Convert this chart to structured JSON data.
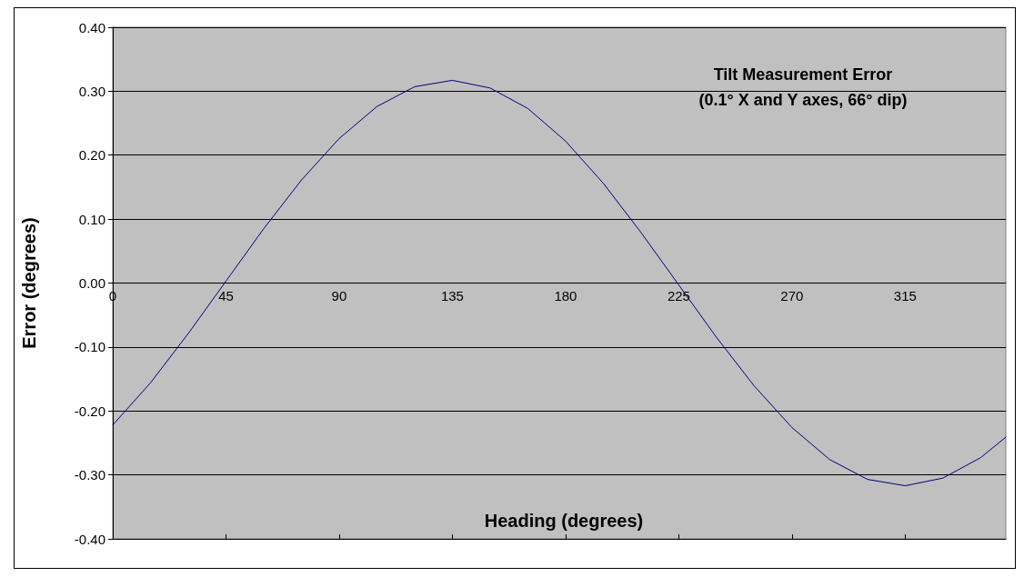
{
  "chart_data": {
    "type": "line",
    "title": "Tilt Measurement Error",
    "subtitle": "(0.1° X and Y axes, 66° dip)",
    "xlabel": "Heading (degrees)",
    "ylabel": "Error (degrees)",
    "x": [
      0,
      15,
      30,
      45,
      60,
      75,
      90,
      105,
      120,
      135,
      150,
      165,
      180,
      195,
      210,
      225,
      240,
      255,
      270,
      285,
      300,
      315,
      330,
      345,
      355
    ],
    "series": [
      {
        "color": "#000080",
        "values": [
          -0.222,
          -0.156,
          -0.079,
          0.003,
          0.085,
          0.161,
          0.226,
          0.276,
          0.307,
          0.317,
          0.305,
          0.273,
          0.222,
          0.156,
          0.079,
          -0.003,
          -0.085,
          -0.161,
          -0.226,
          -0.276,
          -0.307,
          -0.317,
          -0.305,
          -0.273,
          -0.241
        ]
      }
    ],
    "xlim": [
      0,
      355
    ],
    "xticks": [
      0,
      45,
      90,
      135,
      180,
      225,
      270,
      315
    ],
    "ylim": [
      -0.4,
      0.4
    ],
    "yticks": [
      {
        "value": -0.4,
        "label": "-0.40"
      },
      {
        "value": -0.3,
        "label": "-0.30"
      },
      {
        "value": -0.2,
        "label": "-0.20"
      },
      {
        "value": -0.1,
        "label": "-0.10"
      },
      {
        "value": 0,
        "label": "0.00"
      },
      {
        "value": 0.1,
        "label": "0.10"
      },
      {
        "value": 0.2,
        "label": "0.20"
      },
      {
        "value": 0.3,
        "label": "0.30"
      },
      {
        "value": 0.4,
        "label": "0.40"
      }
    ],
    "grid": "y",
    "marker": "none",
    "line_style": "solid"
  }
}
